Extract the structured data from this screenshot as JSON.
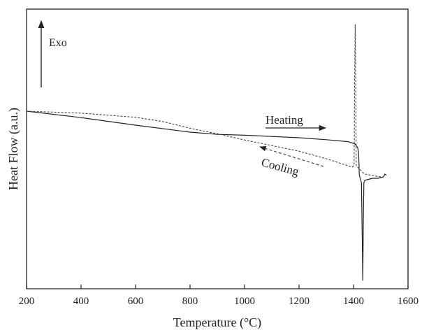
{
  "chart_data": {
    "type": "line",
    "xlabel": "Temperature (°C)",
    "ylabel": "Heat Flow (a.u.)",
    "xlim": [
      200,
      1600
    ],
    "ylim": [
      0,
      100
    ],
    "x_ticks": [
      200,
      400,
      600,
      800,
      1000,
      1200,
      1400,
      1600
    ],
    "y_ticks_shown": false,
    "grid": false,
    "series": [
      {
        "name": "Heating",
        "style": "solid",
        "color": "#222222",
        "points": [
          [
            200,
            63.5
          ],
          [
            400,
            61.2
          ],
          [
            600,
            58.5
          ],
          [
            800,
            56.0
          ],
          [
            900,
            55.2
          ],
          [
            1000,
            54.9
          ],
          [
            1200,
            54.0
          ],
          [
            1300,
            53.3
          ],
          [
            1380,
            52.6
          ],
          [
            1405,
            51.8
          ],
          [
            1415,
            50.5
          ],
          [
            1418,
            49.0
          ],
          [
            1420,
            45.0
          ],
          [
            1421,
            41.0
          ],
          [
            1424,
            39.5
          ],
          [
            1429,
            38.0
          ],
          [
            1432,
            18.0
          ],
          [
            1434,
            3.0
          ],
          [
            1436,
            25.0
          ],
          [
            1438,
            38.0
          ],
          [
            1442,
            38.8
          ],
          [
            1450,
            39.0
          ],
          [
            1470,
            39.5
          ],
          [
            1490,
            39.5
          ],
          [
            1510,
            40.0
          ],
          [
            1515,
            41.0
          ],
          [
            1520,
            40.6
          ]
        ]
      },
      {
        "name": "Cooling",
        "style": "dashed",
        "color": "#444444",
        "points": [
          [
            1500,
            40.0
          ],
          [
            1470,
            40.5
          ],
          [
            1440,
            41.0
          ],
          [
            1420,
            43.0
          ],
          [
            1410,
            44.0
          ],
          [
            1409,
            55.0
          ],
          [
            1408,
            75.0
          ],
          [
            1406,
            94.5
          ],
          [
            1404,
            75.0
          ],
          [
            1403,
            55.0
          ],
          [
            1402,
            44.0
          ],
          [
            1395,
            43.5
          ],
          [
            1300,
            46.5
          ],
          [
            1200,
            49.2
          ],
          [
            1000,
            53.2
          ],
          [
            900,
            55.4
          ],
          [
            800,
            57.4
          ],
          [
            700,
            59.8
          ],
          [
            600,
            61.3
          ],
          [
            400,
            62.8
          ],
          [
            200,
            63.5
          ]
        ]
      }
    ],
    "annotations": [
      {
        "text": "Exo",
        "arrow": "up",
        "position": "top-left"
      },
      {
        "text": "Heating",
        "arrow": "right",
        "arrow_style": "solid"
      },
      {
        "text": "Cooling",
        "arrow": "left",
        "arrow_style": "dashed",
        "rotated": true
      }
    ]
  }
}
